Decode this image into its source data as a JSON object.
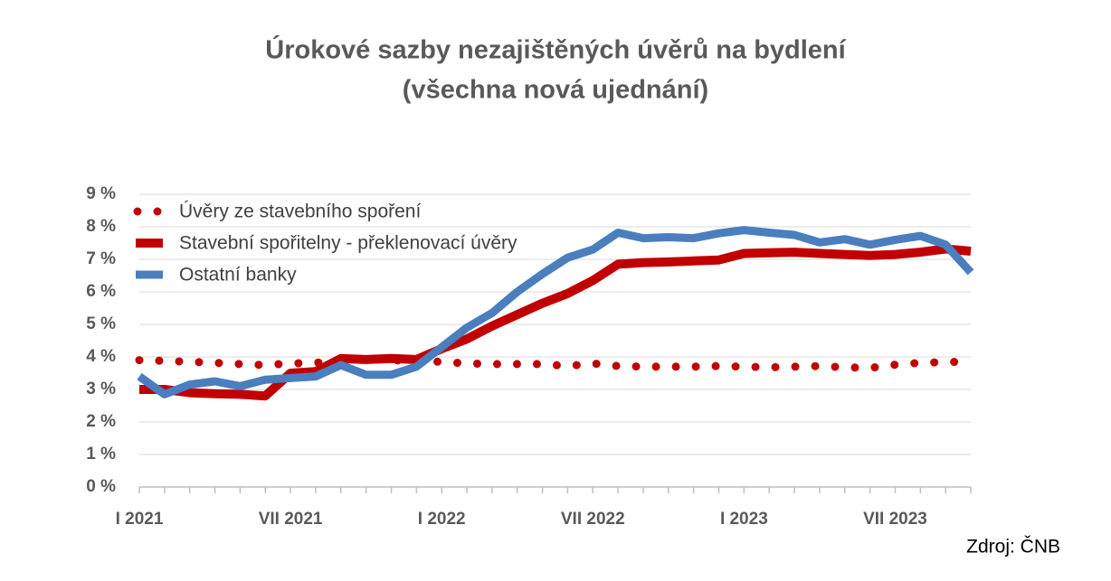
{
  "chart_data": {
    "type": "line",
    "title": "Úrokové sazby nezajištěných úvěrů na bydlení",
    "subtitle": "(všechna nová ujednání)",
    "source": "Zdroj: ČNB",
    "categories": [
      "I 2021",
      null,
      null,
      null,
      null,
      null,
      "VII 2021",
      null,
      null,
      null,
      null,
      null,
      "I 2022",
      null,
      null,
      null,
      null,
      null,
      "VII 2022",
      null,
      null,
      null,
      null,
      null,
      "I 2023",
      null,
      null,
      null,
      null,
      null,
      "VII 2023",
      null,
      null,
      null
    ],
    "series": [
      {
        "name": "Úvěry ze stavebního spoření",
        "color": "#c00000",
        "style": "dotted",
        "values": [
          3.9,
          3.88,
          3.85,
          3.82,
          3.78,
          3.75,
          3.8,
          3.82,
          3.9,
          3.95,
          3.9,
          3.87,
          3.85,
          3.8,
          3.78,
          3.78,
          3.78,
          3.72,
          3.8,
          3.72,
          3.7,
          3.7,
          3.7,
          3.72,
          3.7,
          3.68,
          3.7,
          3.72,
          3.68,
          3.66,
          3.76,
          3.82,
          3.84,
          3.86
        ]
      },
      {
        "name": "Stavební spořitelny - překlenovací úvěry",
        "color": "#c00000",
        "style": "solid",
        "values": [
          3.0,
          3.0,
          2.9,
          2.87,
          2.85,
          2.8,
          3.5,
          3.55,
          3.95,
          3.92,
          3.95,
          3.92,
          4.25,
          4.55,
          4.95,
          5.3,
          5.65,
          5.95,
          6.35,
          6.85,
          6.9,
          6.92,
          6.95,
          6.98,
          7.18,
          7.2,
          7.22,
          7.18,
          7.15,
          7.12,
          7.15,
          7.22,
          7.32,
          7.25
        ]
      },
      {
        "name": "Ostatní banky",
        "color": "#4a7ebf",
        "style": "solid",
        "values": [
          3.4,
          2.85,
          3.15,
          3.25,
          3.1,
          3.3,
          3.35,
          3.4,
          3.75,
          3.45,
          3.45,
          3.7,
          4.3,
          4.9,
          5.35,
          6.0,
          6.55,
          7.05,
          7.3,
          7.82,
          7.65,
          7.68,
          7.65,
          7.8,
          7.9,
          7.82,
          7.75,
          7.52,
          7.62,
          7.45,
          7.6,
          7.72,
          7.45,
          6.6
        ]
      }
    ],
    "ylim": [
      0,
      9
    ],
    "yticks": [
      {
        "value": 0,
        "label": "0 %"
      },
      {
        "value": 1,
        "label": "1 %"
      },
      {
        "value": 2,
        "label": "2 %"
      },
      {
        "value": 3,
        "label": "3 %"
      },
      {
        "value": 4,
        "label": "4 %"
      },
      {
        "value": 5,
        "label": "5 %"
      },
      {
        "value": 6,
        "label": "6 %"
      },
      {
        "value": 7,
        "label": "7 %"
      },
      {
        "value": 8,
        "label": "8 %"
      },
      {
        "value": 9,
        "label": "9 %"
      }
    ],
    "grid": true,
    "legend": "upper left"
  }
}
